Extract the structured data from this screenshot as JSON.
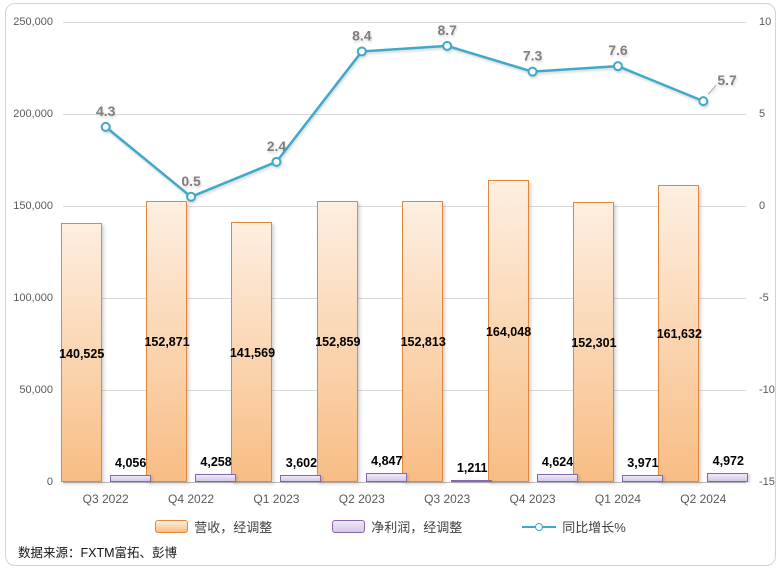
{
  "chart_data": {
    "type": "combo",
    "categories": [
      "Q3 2022",
      "Q4 2022",
      "Q1 2023",
      "Q2 2023",
      "Q3 2023",
      "Q4 2023",
      "Q1 2024",
      "Q2 2024"
    ],
    "series": [
      {
        "name": "营收，经调整",
        "type": "bar",
        "axis": "left",
        "values": [
          140525,
          152871,
          141569,
          152859,
          152813,
          164048,
          152301,
          161632
        ],
        "labels": [
          "140,525",
          "152,871",
          "141,569",
          "152,859",
          "152,813",
          "164,048",
          "152,301",
          "161,632"
        ]
      },
      {
        "name": "净利润，经调整",
        "type": "bar",
        "axis": "left",
        "values": [
          4056,
          4258,
          3602,
          4847,
          1211,
          4624,
          3971,
          4972
        ],
        "labels": [
          "4,056",
          "4,258",
          "3,602",
          "4,847",
          "1,211",
          "4,624",
          "3,971",
          "4,972"
        ]
      },
      {
        "name": "同比增长%",
        "type": "line",
        "axis": "right",
        "values": [
          4.3,
          0.5,
          2.4,
          8.4,
          8.7,
          7.3,
          7.6,
          5.7
        ],
        "labels": [
          "4.3",
          "0.5",
          "2.4",
          "8.4",
          "8.7",
          "7.3",
          "7.6",
          "5.7"
        ],
        "last_label_leader": true
      }
    ],
    "left_axis": {
      "min": 0,
      "max": 250000,
      "step": 50000,
      "ticks": [
        {
          "value": 0,
          "label": "0"
        },
        {
          "value": 50000,
          "label": "50,000"
        },
        {
          "value": 100000,
          "label": "100,000"
        },
        {
          "value": 150000,
          "label": "150,000"
        },
        {
          "value": 200000,
          "label": "200,000"
        },
        {
          "value": 250000,
          "label": "250,000"
        }
      ]
    },
    "right_axis": {
      "min": -15,
      "max": 10,
      "step": 5,
      "ticks": [
        {
          "value": -15,
          "label": "-15"
        },
        {
          "value": -10,
          "label": "-10"
        },
        {
          "value": -5,
          "label": "-5"
        },
        {
          "value": 0,
          "label": "0"
        },
        {
          "value": 5,
          "label": "5"
        },
        {
          "value": 10,
          "label": "10"
        }
      ]
    },
    "title": "",
    "xlabel": "",
    "ylabel": "",
    "grid": true,
    "legend_position": "bottom"
  },
  "source_note": "数据来源：FXTM富拓、彭博",
  "colors": {
    "revenue_top": "#fdefe1",
    "revenue_bottom": "#f8bd84",
    "revenue_border": "#e0883b",
    "profit_fill": "#d5c6e8",
    "profit_border": "#8766ab",
    "line_color": "#3ea9c9",
    "grid_color": "#d9d9d9",
    "axis_text": "#595959",
    "line_label": "#7f7f7f"
  }
}
